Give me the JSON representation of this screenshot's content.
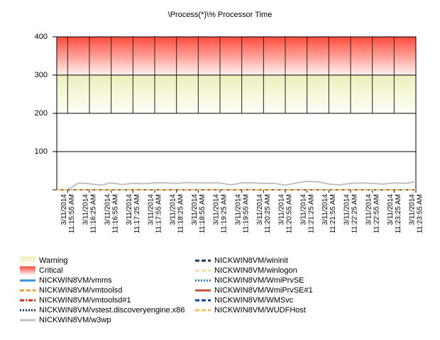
{
  "chart_data": {
    "type": "line",
    "title": "\\Process(*)\\% Processor Time",
    "categories": [
      null,
      [
        "3/11/2014",
        "11:15:55 AM"
      ],
      null,
      [
        "3/11/2014",
        "11:16:25 AM"
      ],
      null,
      [
        "3/11/2014",
        "11:16:55 AM"
      ],
      null,
      [
        "3/11/2014",
        "11:17:25 AM"
      ],
      null,
      [
        "3/11/2014",
        "11:17:55 AM"
      ],
      null,
      [
        "3/11/2014",
        "11:18:25 AM"
      ],
      null,
      [
        "3/11/2014",
        "11:18:55 AM"
      ],
      null,
      [
        "3/11/2014",
        "11:19:25 AM"
      ],
      null,
      [
        "3/11/2014",
        "11:19:55 AM"
      ],
      null,
      [
        "3/11/2014",
        "11:20:25 AM"
      ],
      null,
      [
        "3/11/2014",
        "11:20:55 AM"
      ],
      null,
      [
        "3/11/2014",
        "11:21:25 AM"
      ],
      null,
      [
        "3/11/2014",
        "11:21:55 AM"
      ],
      null,
      [
        "3/11/2014",
        "11:22:25 AM"
      ],
      null,
      [
        "3/11/2014",
        "11:22:55 AM"
      ],
      null,
      [
        "3/11/2014",
        "11:23:25 AM"
      ],
      null,
      [
        "3/11/2014",
        "11:23:55 AM"
      ]
    ],
    "ylim": [
      0,
      400
    ],
    "yticks": [
      100,
      200,
      300,
      400
    ],
    "grid": true,
    "bands": [
      {
        "name": "Warning",
        "from": 200,
        "to": 300,
        "color": "#eeeebb"
      },
      {
        "name": "Critical",
        "from": 300,
        "to": 400,
        "color": "#ff4a3a"
      }
    ],
    "series": [
      {
        "name": "NICKWIN8VM/vmms",
        "color": "#3c8fe0",
        "dash": "solid",
        "values": [
          0,
          0,
          0,
          0,
          0,
          0,
          0,
          0,
          0,
          0,
          0,
          0,
          0,
          0,
          0,
          0,
          0,
          0,
          0,
          0,
          0,
          0,
          0,
          0,
          0,
          0,
          0,
          0,
          0,
          0,
          0,
          0,
          0,
          0
        ]
      },
      {
        "name": "NICKWIN8VM/vmtoolsd",
        "color": "#f0a030",
        "dash": "dash",
        "values": [
          0,
          0,
          0,
          0,
          0,
          0,
          0,
          0,
          0,
          0,
          0,
          0,
          0,
          0,
          0,
          0,
          0,
          0,
          0,
          0,
          0,
          0,
          0,
          0,
          0,
          0,
          0,
          0,
          0,
          0,
          0,
          0,
          0,
          0
        ]
      },
      {
        "name": "NICKWIN8VM/vmtoolsd#1",
        "color": "#c83010",
        "dash": "dashdot",
        "values": [
          0,
          0,
          0,
          0,
          0,
          0,
          0,
          0,
          0,
          0,
          0,
          0,
          0,
          0,
          0,
          0,
          0,
          0,
          0,
          0,
          0,
          0,
          0,
          0,
          0,
          0,
          0,
          0,
          0,
          0,
          0,
          0,
          0,
          0
        ]
      },
      {
        "name": "NICKWIN8VM/vstest.discoveryengine.x86",
        "color": "#104060",
        "dash": "dot",
        "values": [
          0,
          0,
          0,
          0,
          0,
          0,
          0,
          0,
          0,
          0,
          0,
          0,
          0,
          0,
          0,
          0,
          0,
          0,
          0,
          0,
          0,
          0,
          0,
          0,
          0,
          0,
          0,
          0,
          0,
          0,
          0,
          0,
          0,
          0
        ]
      },
      {
        "name": "NICKWIN8VM/w3wp",
        "color": "#c0c0c0",
        "dash": "solid",
        "values": [
          0,
          0,
          18,
          16,
          12,
          18,
          14,
          17,
          16,
          18,
          18,
          17,
          19,
          18,
          18,
          18,
          13,
          18,
          18,
          17,
          17,
          12,
          18,
          22,
          21,
          15,
          13,
          17,
          18,
          17,
          15,
          18,
          17,
          21
        ]
      },
      {
        "name": "NICKWIN8VM/wininit",
        "color": "#1a3a60",
        "dash": "dash",
        "values": [
          0,
          0,
          0,
          0,
          0,
          0,
          0,
          0,
          0,
          0,
          0,
          0,
          0,
          0,
          0,
          0,
          0,
          0,
          0,
          0,
          0,
          0,
          0,
          0,
          0,
          0,
          0,
          0,
          0,
          0,
          0,
          0,
          0,
          0
        ]
      },
      {
        "name": "NICKWIN8VM/winlogon",
        "color": "#f0e0a0",
        "dash": "dash",
        "values": [
          0,
          0,
          0,
          0,
          0,
          0,
          0,
          0,
          0,
          0,
          0,
          0,
          0,
          0,
          0,
          0,
          0,
          0,
          0,
          0,
          0,
          0,
          0,
          0,
          0,
          0,
          0,
          0,
          0,
          0,
          0,
          0,
          0,
          0
        ]
      },
      {
        "name": "NICKWIN8VM/WmiPrvSE",
        "color": "#2080e0",
        "dash": "dot",
        "values": [
          0,
          0,
          0,
          0,
          0,
          0,
          0,
          0,
          0,
          0,
          0,
          0,
          0,
          0,
          0,
          0,
          0,
          0,
          0,
          0,
          0,
          0,
          0,
          0,
          0,
          0,
          0,
          0,
          0,
          0,
          0,
          0,
          0,
          0
        ]
      },
      {
        "name": "NICKWIN8VM/WmiPrvSE#1",
        "color": "#c05030",
        "dash": "solid",
        "values": [
          0,
          0,
          0,
          0,
          0,
          0,
          0,
          0,
          0,
          0,
          0,
          0,
          0,
          0,
          0,
          0,
          0,
          0,
          0,
          0,
          0,
          0,
          0,
          0,
          0,
          0,
          0,
          0,
          0,
          0,
          0,
          0,
          0,
          0
        ]
      },
      {
        "name": "NICKWIN8VM/WMSvc",
        "color": "#1040c0",
        "dash": "dash",
        "values": [
          0,
          0,
          0,
          0,
          0,
          0,
          0,
          0,
          0,
          0,
          0,
          0,
          0,
          0,
          0,
          0,
          0,
          0,
          0,
          0,
          0,
          0,
          0,
          0,
          0,
          0,
          0,
          0,
          0,
          0,
          0,
          0,
          0,
          0
        ]
      },
      {
        "name": "NICKWIN8VM/WUDFHost",
        "color": "#f0c060",
        "dash": "dash",
        "values": [
          0,
          0,
          0,
          0,
          0,
          0,
          0,
          0,
          0,
          0,
          0,
          0,
          0,
          0,
          0,
          0,
          0,
          0,
          0,
          0,
          0,
          0,
          0,
          0,
          0,
          0,
          0,
          0,
          0,
          0,
          0,
          0,
          0,
          0
        ]
      }
    ]
  }
}
